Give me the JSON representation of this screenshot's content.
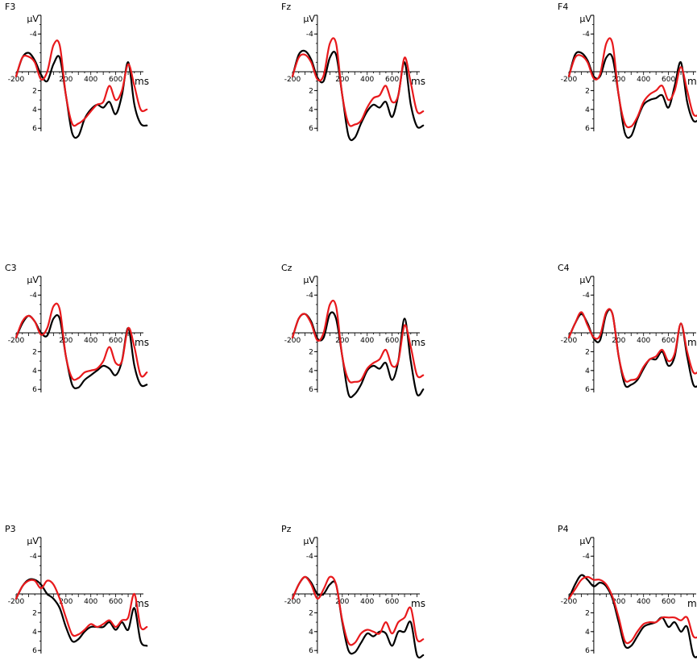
{
  "figure": {
    "y_unit": "µV",
    "x_unit": "ms",
    "y_ticks": [
      "-4",
      "2",
      "4",
      "6"
    ],
    "x_ticks": [
      "-200",
      "200",
      "400",
      "600"
    ],
    "colors": {
      "series_a": "#000000",
      "series_b": "#e8191c"
    }
  },
  "chart_data": [
    {
      "type": "line",
      "electrode": "F3",
      "xlim": [
        -200,
        800
      ],
      "ylim": [
        -6,
        7.5
      ],
      "y_inverted": true,
      "series": [
        {
          "x": [
            -200,
            -150,
            -100,
            -50,
            0,
            50,
            100,
            150,
            200,
            250,
            300,
            350,
            400,
            450,
            500,
            550,
            600,
            650,
            700,
            750,
            800,
            850
          ],
          "values": [
            0.5,
            -1.5,
            -2.0,
            -1.2,
            0.3,
            1.0,
            -0.8,
            -1.5,
            2.5,
            6.5,
            6.8,
            5.0,
            4.0,
            3.5,
            3.8,
            3.2,
            4.5,
            2.5,
            -1.0,
            3.5,
            5.5,
            5.7
          ]
        },
        {
          "x": [
            -200,
            -150,
            -100,
            -50,
            0,
            50,
            100,
            150,
            200,
            250,
            300,
            350,
            400,
            450,
            500,
            550,
            600,
            650,
            700,
            750,
            800,
            850
          ],
          "values": [
            0.5,
            -1.5,
            -1.6,
            -1.0,
            0.8,
            0.0,
            -2.8,
            -2.8,
            2.5,
            5.5,
            5.5,
            5.0,
            4.2,
            3.5,
            3.2,
            1.5,
            3.0,
            2.0,
            -0.8,
            1.5,
            4.0,
            4.0
          ]
        }
      ]
    },
    {
      "type": "line",
      "electrode": "Fz",
      "xlim": [
        -200,
        800
      ],
      "ylim": [
        -6,
        7.5
      ],
      "y_inverted": true,
      "series": [
        {
          "x": [
            -200,
            -150,
            -100,
            -50,
            0,
            50,
            100,
            150,
            200,
            250,
            300,
            350,
            400,
            450,
            500,
            550,
            600,
            650,
            700,
            750,
            800,
            850
          ],
          "values": [
            0.5,
            -1.8,
            -2.2,
            -1.3,
            0.6,
            1.0,
            -1.5,
            -1.8,
            2.5,
            6.8,
            7.0,
            5.5,
            4.2,
            3.5,
            3.8,
            3.2,
            4.8,
            2.5,
            -1.0,
            3.5,
            5.8,
            5.7
          ]
        },
        {
          "x": [
            -200,
            -150,
            -100,
            -50,
            0,
            50,
            100,
            150,
            200,
            250,
            300,
            350,
            400,
            450,
            500,
            550,
            600,
            650,
            700,
            750,
            800,
            850
          ],
          "values": [
            0.5,
            -1.5,
            -1.8,
            -1.0,
            0.8,
            0.4,
            -3.0,
            -3.0,
            2.5,
            5.5,
            5.6,
            5.2,
            3.8,
            2.8,
            2.5,
            1.5,
            3.2,
            2.5,
            -1.5,
            1.2,
            4.2,
            4.2
          ]
        }
      ]
    },
    {
      "type": "line",
      "electrode": "F4",
      "xlim": [
        -200,
        800
      ],
      "ylim": [
        -6,
        7.5
      ],
      "y_inverted": true,
      "series": [
        {
          "x": [
            -200,
            -150,
            -100,
            -50,
            0,
            50,
            100,
            150,
            200,
            250,
            300,
            350,
            400,
            450,
            500,
            550,
            600,
            650,
            700,
            750,
            800,
            850
          ],
          "values": [
            0.5,
            -1.8,
            -2.0,
            -1.2,
            0.5,
            0.5,
            -1.5,
            -1.5,
            2.5,
            6.5,
            6.8,
            5.0,
            3.5,
            3.0,
            2.8,
            2.5,
            3.8,
            1.5,
            -1.0,
            3.2,
            5.2,
            5.0
          ]
        },
        {
          "x": [
            -200,
            -150,
            -100,
            -50,
            0,
            50,
            100,
            150,
            200,
            250,
            300,
            350,
            400,
            450,
            500,
            550,
            600,
            650,
            700,
            750,
            800,
            850
          ],
          "values": [
            0.5,
            -1.5,
            -1.7,
            -1.0,
            0.7,
            0.3,
            -3.0,
            -3.0,
            2.5,
            5.5,
            5.8,
            4.8,
            3.2,
            2.4,
            2.0,
            1.5,
            3.0,
            2.0,
            -0.5,
            2.0,
            4.5,
            4.5
          ]
        }
      ]
    },
    {
      "type": "line",
      "electrode": "C3",
      "xlim": [
        -200,
        800
      ],
      "ylim": [
        -6,
        7.5
      ],
      "y_inverted": true,
      "series": [
        {
          "x": [
            -200,
            -150,
            -100,
            -50,
            0,
            50,
            100,
            150,
            200,
            250,
            300,
            350,
            400,
            450,
            500,
            550,
            600,
            650,
            700,
            750,
            800,
            850
          ],
          "values": [
            0.5,
            -1.0,
            -1.8,
            -1.2,
            0.0,
            0.3,
            -1.5,
            -1.5,
            2.5,
            5.5,
            5.8,
            5.0,
            4.5,
            4.0,
            3.5,
            3.8,
            4.5,
            3.0,
            -0.5,
            3.5,
            5.5,
            5.5
          ]
        },
        {
          "x": [
            -200,
            -150,
            -100,
            -50,
            0,
            50,
            100,
            150,
            200,
            250,
            300,
            350,
            400,
            450,
            500,
            550,
            600,
            650,
            700,
            750,
            800,
            850
          ],
          "values": [
            0.5,
            -1.2,
            -1.8,
            -1.2,
            0.2,
            -0.5,
            -2.8,
            -2.5,
            2.5,
            4.8,
            4.8,
            4.2,
            4.0,
            3.8,
            3.0,
            1.5,
            3.2,
            3.0,
            -0.5,
            1.5,
            4.5,
            4.2
          ]
        }
      ]
    },
    {
      "type": "line",
      "electrode": "Cz",
      "xlim": [
        -200,
        800
      ],
      "ylim": [
        -6,
        7.5
      ],
      "y_inverted": true,
      "series": [
        {
          "x": [
            -200,
            -150,
            -100,
            -50,
            0,
            50,
            100,
            150,
            200,
            250,
            300,
            350,
            400,
            450,
            500,
            550,
            600,
            650,
            700,
            750,
            800,
            850
          ],
          "values": [
            0.5,
            -1.5,
            -2.0,
            -1.2,
            0.6,
            0.5,
            -2.0,
            -1.5,
            2.5,
            6.5,
            6.5,
            5.5,
            4.0,
            3.5,
            3.8,
            3.2,
            5.0,
            3.0,
            -1.5,
            3.0,
            6.5,
            6.0
          ]
        },
        {
          "x": [
            -200,
            -150,
            -100,
            -50,
            0,
            50,
            100,
            150,
            200,
            250,
            300,
            350,
            400,
            450,
            500,
            550,
            600,
            650,
            700,
            750,
            800,
            850
          ],
          "values": [
            0.5,
            -1.5,
            -2.0,
            -1.0,
            0.8,
            0.0,
            -3.0,
            -2.8,
            2.5,
            5.0,
            5.2,
            5.0,
            3.8,
            3.2,
            2.8,
            1.8,
            3.5,
            3.0,
            -0.8,
            1.5,
            4.5,
            4.5
          ]
        }
      ]
    },
    {
      "type": "line",
      "electrode": "C4",
      "xlim": [
        -200,
        800
      ],
      "ylim": [
        -6,
        7.5
      ],
      "y_inverted": true,
      "series": [
        {
          "x": [
            -200,
            -150,
            -100,
            -50,
            0,
            50,
            100,
            150,
            200,
            250,
            300,
            350,
            400,
            450,
            500,
            550,
            600,
            650,
            700,
            750,
            800,
            850
          ],
          "values": [
            0.5,
            -1.0,
            -2.0,
            -1.0,
            0.6,
            0.8,
            -2.0,
            -2.0,
            2.5,
            5.5,
            5.5,
            5.0,
            3.8,
            2.8,
            2.8,
            2.0,
            3.5,
            2.5,
            -1.0,
            2.5,
            5.5,
            5.5
          ]
        },
        {
          "x": [
            -200,
            -150,
            -100,
            -50,
            0,
            50,
            100,
            150,
            200,
            250,
            300,
            350,
            400,
            450,
            500,
            550,
            600,
            650,
            700,
            750,
            800,
            850
          ],
          "values": [
            0.5,
            -1.0,
            -2.2,
            -0.8,
            0.5,
            0.3,
            -2.2,
            -2.0,
            2.5,
            5.0,
            5.0,
            4.8,
            3.6,
            2.8,
            2.5,
            1.8,
            3.0,
            2.2,
            -1.0,
            2.0,
            4.2,
            4.0
          ]
        }
      ]
    },
    {
      "type": "line",
      "electrode": "P3",
      "xlim": [
        -200,
        800
      ],
      "ylim": [
        -6,
        7.5
      ],
      "y_inverted": true,
      "series": [
        {
          "x": [
            -200,
            -150,
            -100,
            -50,
            0,
            50,
            100,
            150,
            200,
            250,
            300,
            350,
            400,
            450,
            500,
            550,
            600,
            650,
            700,
            750,
            800,
            850
          ],
          "values": [
            0.5,
            -0.8,
            -1.5,
            -1.5,
            -1.0,
            0.0,
            0.5,
            1.5,
            3.5,
            5.0,
            4.8,
            4.0,
            3.5,
            3.5,
            3.5,
            3.0,
            3.8,
            3.0,
            3.8,
            1.5,
            5.0,
            5.5
          ]
        },
        {
          "x": [
            -200,
            -150,
            -100,
            -50,
            0,
            50,
            100,
            150,
            200,
            250,
            300,
            350,
            400,
            450,
            500,
            550,
            600,
            650,
            700,
            750,
            800,
            850
          ],
          "values": [
            0.5,
            -0.8,
            -1.4,
            -1.4,
            -0.6,
            -1.4,
            -1.0,
            0.5,
            2.5,
            4.3,
            4.3,
            3.8,
            3.2,
            3.5,
            3.2,
            2.8,
            3.5,
            2.8,
            2.5,
            0.0,
            3.5,
            3.5
          ]
        }
      ]
    },
    {
      "type": "line",
      "electrode": "Pz",
      "xlim": [
        -200,
        800
      ],
      "ylim": [
        -6,
        7.5
      ],
      "y_inverted": true,
      "series": [
        {
          "x": [
            -200,
            -150,
            -100,
            -50,
            0,
            50,
            100,
            150,
            200,
            250,
            300,
            350,
            400,
            450,
            500,
            550,
            600,
            650,
            700,
            750,
            800,
            850
          ],
          "values": [
            0.5,
            -1.0,
            -1.8,
            -1.2,
            0.0,
            0.0,
            -1.0,
            -1.0,
            3.0,
            6.0,
            6.2,
            5.2,
            4.2,
            4.5,
            4.0,
            4.2,
            5.5,
            4.0,
            4.0,
            3.0,
            6.5,
            6.5
          ]
        },
        {
          "x": [
            -200,
            -150,
            -100,
            -50,
            0,
            50,
            100,
            150,
            200,
            250,
            300,
            350,
            400,
            450,
            500,
            550,
            600,
            650,
            700,
            750,
            800,
            850
          ],
          "values": [
            0.5,
            -1.0,
            -1.8,
            -1.0,
            0.5,
            -0.5,
            -1.8,
            -1.0,
            2.8,
            5.2,
            5.2,
            4.2,
            3.8,
            4.0,
            4.2,
            3.0,
            4.2,
            3.0,
            2.5,
            1.5,
            4.8,
            4.8
          ]
        }
      ]
    },
    {
      "type": "line",
      "electrode": "P4",
      "xlim": [
        -200,
        800
      ],
      "ylim": [
        -6,
        7.5
      ],
      "y_inverted": true,
      "series": [
        {
          "x": [
            -200,
            -150,
            -100,
            -50,
            0,
            50,
            100,
            150,
            200,
            250,
            300,
            350,
            400,
            450,
            500,
            550,
            600,
            650,
            700,
            750,
            800,
            850
          ],
          "values": [
            0.5,
            -1.0,
            -2.0,
            -1.5,
            -0.8,
            -1.2,
            -0.8,
            0.5,
            3.0,
            5.5,
            5.5,
            4.5,
            3.5,
            3.2,
            3.0,
            2.5,
            3.5,
            3.0,
            4.0,
            3.5,
            6.5,
            6.5
          ]
        },
        {
          "x": [
            -200,
            -150,
            -100,
            -50,
            0,
            50,
            100,
            150,
            200,
            250,
            300,
            350,
            400,
            450,
            500,
            550,
            600,
            650,
            700,
            750,
            800,
            850
          ],
          "values": [
            0.5,
            -0.5,
            -1.5,
            -1.8,
            -1.5,
            -1.5,
            -1.0,
            0.3,
            2.5,
            5.0,
            5.0,
            4.0,
            3.2,
            3.0,
            3.0,
            2.5,
            2.5,
            2.5,
            2.8,
            2.5,
            4.5,
            4.5
          ]
        }
      ]
    }
  ]
}
